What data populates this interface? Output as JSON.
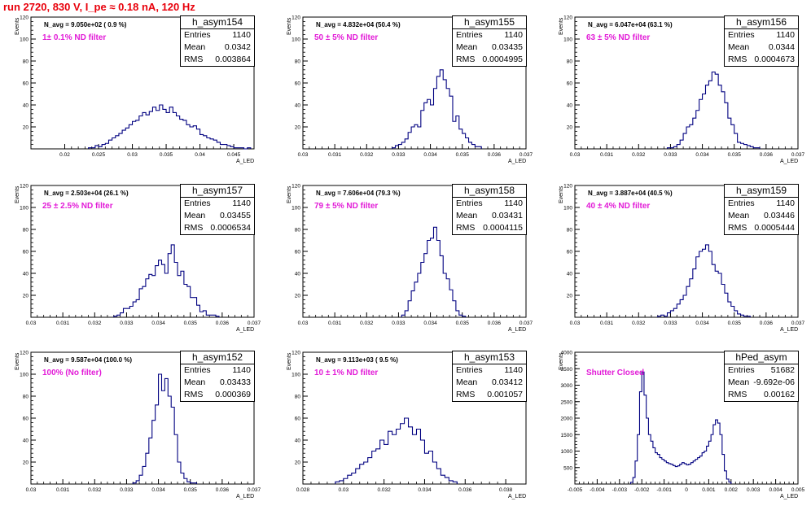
{
  "run_title": "run 2720,   830 V, I_pe ≈ 0.18 nA, 120 Hz",
  "panels": [
    {
      "name": "h_asym154",
      "entries": "1140",
      "mean": "0.0342",
      "rms": "0.003864",
      "navg": "N_avg = 9.050e+02 ( 0.9 %)",
      "filter": "1± 0.1% ND filter",
      "ylabel": "Events",
      "xlabel": "A_LED"
    },
    {
      "name": "h_asym155",
      "entries": "1140",
      "mean": "0.03435",
      "rms": "0.0004995",
      "navg": "N_avg = 4.832e+04 (50.4 %)",
      "filter": "50 ± 5% ND filter",
      "ylabel": "Events",
      "xlabel": "A_LED"
    },
    {
      "name": "h_asym156",
      "entries": "1140",
      "mean": "0.0344",
      "rms": "0.0004673",
      "navg": "N_avg = 6.047e+04 (63.1 %)",
      "filter": "63 ± 5% ND filter",
      "ylabel": "Events",
      "xlabel": "A_LED"
    },
    {
      "name": "h_asym157",
      "entries": "1140",
      "mean": "0.03455",
      "rms": "0.0006534",
      "navg": "N_avg = 2.503e+04 (26.1 %)",
      "filter": "25 ± 2.5% ND filter",
      "ylabel": "Events",
      "xlabel": "A_LED"
    },
    {
      "name": "h_asym158",
      "entries": "1140",
      "mean": "0.03431",
      "rms": "0.0004115",
      "navg": "N_avg = 7.606e+04 (79.3 %)",
      "filter": "79 ± 5% ND filter",
      "ylabel": "Events",
      "xlabel": "A_LED"
    },
    {
      "name": "h_asym159",
      "entries": "1140",
      "mean": "0.03446",
      "rms": "0.0005444",
      "navg": "N_avg = 3.887e+04 (40.5 %)",
      "filter": "40 ± 4% ND filter",
      "ylabel": "Events",
      "xlabel": "A_LED"
    },
    {
      "name": "h_asym152",
      "entries": "1140",
      "mean": "0.03433",
      "rms": "0.000369",
      "navg": "N_avg = 9.587e+04 (100.0 %)",
      "filter": "100% (No filter)",
      "ylabel": "Events",
      "xlabel": "A_LED"
    },
    {
      "name": "h_asym153",
      "entries": "1140",
      "mean": "0.03412",
      "rms": "0.001057",
      "navg": "N_avg = 9.113e+03 ( 9.5 %)",
      "filter": "10 ± 1% ND filter",
      "ylabel": "Events",
      "xlabel": "A_LED"
    },
    {
      "name": "hPed_asym",
      "entries": "51682",
      "mean": "-9.692e-06",
      "rms": "0.00162",
      "navg": "",
      "filter": "Shutter Closed",
      "ylabel": "Events",
      "xlabel": "A_LED"
    }
  ],
  "chart_data": [
    {
      "type": "histogram",
      "title": "h_asym154",
      "xlim": [
        0.015,
        0.048
      ],
      "ylim": [
        0,
        120
      ],
      "xticks": [
        "0.02",
        "0.025",
        "0.03",
        "0.035",
        "0.04",
        "0.045"
      ],
      "yticks": [
        "20",
        "40",
        "60",
        "80",
        "100",
        "120"
      ],
      "bin_width": 0.0005,
      "x_start": 0.0235,
      "values": [
        1,
        1,
        3,
        2,
        4,
        5,
        8,
        10,
        12,
        14,
        17,
        19,
        22,
        25,
        26,
        30,
        33,
        31,
        34,
        38,
        35,
        40,
        36,
        33,
        38,
        33,
        30,
        27,
        26,
        22,
        20,
        21,
        18,
        13,
        12,
        10,
        9,
        8,
        6,
        4,
        4,
        3,
        2,
        1,
        1,
        1,
        0,
        1
      ]
    },
    {
      "type": "histogram",
      "title": "h_asym155",
      "xlim": [
        0.03,
        0.037
      ],
      "ylim": [
        0,
        120
      ],
      "xticks": [
        "0.03",
        "0.031",
        "0.032",
        "0.033",
        "0.034",
        "0.035",
        "0.036",
        "0.037"
      ],
      "yticks": [
        "20",
        "40",
        "60",
        "80",
        "100",
        "120"
      ],
      "bin_width": 0.0001,
      "x_start": 0.0328,
      "values": [
        1,
        3,
        4,
        6,
        9,
        15,
        20,
        22,
        20,
        35,
        42,
        45,
        40,
        55,
        66,
        72,
        63,
        55,
        48,
        25,
        30,
        18,
        14,
        10,
        6,
        4,
        2,
        2
      ]
    },
    {
      "type": "histogram",
      "title": "h_asym156",
      "xlim": [
        0.03,
        0.037
      ],
      "ylim": [
        0,
        120
      ],
      "xticks": [
        "0.03",
        "0.031",
        "0.032",
        "0.033",
        "0.034",
        "0.035",
        "0.036",
        "0.037"
      ],
      "yticks": [
        "20",
        "40",
        "60",
        "80",
        "100",
        "120"
      ],
      "bin_width": 0.0001,
      "x_start": 0.0329,
      "values": [
        1,
        1,
        2,
        4,
        8,
        14,
        20,
        22,
        28,
        35,
        45,
        50,
        58,
        62,
        70,
        68,
        58,
        52,
        42,
        28,
        22,
        14,
        6,
        5,
        4,
        3,
        2,
        1,
        1
      ]
    },
    {
      "type": "histogram",
      "title": "h_asym157",
      "xlim": [
        0.03,
        0.037
      ],
      "ylim": [
        0,
        120
      ],
      "xticks": [
        "0.03",
        "0.031",
        "0.032",
        "0.033",
        "0.034",
        "0.035",
        "0.036",
        "0.037"
      ],
      "yticks": [
        "20",
        "40",
        "60",
        "80",
        "100",
        "120"
      ],
      "bin_width": 0.0001,
      "x_start": 0.0326,
      "values": [
        1,
        2,
        4,
        8,
        8,
        10,
        14,
        16,
        26,
        28,
        35,
        39,
        38,
        47,
        52,
        48,
        40,
        58,
        66,
        50,
        38,
        42,
        30,
        28,
        18,
        18,
        11,
        5,
        6,
        2,
        2,
        2,
        1
      ]
    },
    {
      "type": "histogram",
      "title": "h_asym158",
      "xlim": [
        0.03,
        0.037
      ],
      "ylim": [
        0,
        120
      ],
      "xticks": [
        "0.03",
        "0.031",
        "0.032",
        "0.033",
        "0.034",
        "0.035",
        "0.036",
        "0.037"
      ],
      "yticks": [
        "20",
        "40",
        "60",
        "80",
        "100",
        "120"
      ],
      "bin_width": 0.0001,
      "x_start": 0.0331,
      "values": [
        2,
        6,
        15,
        24,
        32,
        40,
        50,
        58,
        70,
        72,
        82,
        70,
        56,
        40,
        35,
        25,
        15,
        6,
        2,
        1
      ]
    },
    {
      "type": "histogram",
      "title": "h_asym159",
      "xlim": [
        0.03,
        0.037
      ],
      "ylim": [
        0,
        120
      ],
      "xticks": [
        "0.03",
        "0.031",
        "0.032",
        "0.033",
        "0.034",
        "0.035",
        "0.036",
        "0.037"
      ],
      "yticks": [
        "20",
        "40",
        "60",
        "80",
        "100",
        "120"
      ],
      "bin_width": 0.0001,
      "x_start": 0.0326,
      "values": [
        1,
        2,
        1,
        4,
        6,
        8,
        12,
        16,
        20,
        28,
        35,
        44,
        55,
        60,
        62,
        66,
        60,
        48,
        42,
        40,
        30,
        22,
        14,
        10,
        6,
        3,
        2,
        1,
        1
      ]
    },
    {
      "type": "histogram",
      "title": "h_asym152",
      "xlim": [
        0.03,
        0.037
      ],
      "ylim": [
        0,
        120
      ],
      "xticks": [
        "0.03",
        "0.031",
        "0.032",
        "0.033",
        "0.034",
        "0.035",
        "0.036",
        "0.037"
      ],
      "yticks": [
        "20",
        "40",
        "60",
        "80",
        "100",
        "120"
      ],
      "bin_width": 0.0001,
      "x_start": 0.0332,
      "values": [
        1,
        3,
        8,
        16,
        28,
        42,
        58,
        72,
        100,
        85,
        96,
        80,
        70,
        45,
        20,
        10,
        5,
        2,
        1,
        1
      ]
    },
    {
      "type": "histogram",
      "title": "h_asym153",
      "xlim": [
        0.028,
        0.039
      ],
      "ylim": [
        0,
        120
      ],
      "xticks": [
        "0.028",
        "0.03",
        "0.032",
        "0.034",
        "0.036",
        "0.038"
      ],
      "yticks": [
        "20",
        "40",
        "60",
        "80",
        "100",
        "120"
      ],
      "bin_width": 0.0002,
      "x_start": 0.0296,
      "values": [
        2,
        3,
        5,
        8,
        10,
        14,
        18,
        20,
        24,
        30,
        32,
        40,
        36,
        48,
        45,
        50,
        55,
        60,
        52,
        45,
        50,
        40,
        28,
        30,
        20,
        14,
        8,
        6,
        3,
        2
      ]
    },
    {
      "type": "histogram",
      "title": "hPed_asym",
      "xlim": [
        -0.005,
        0.005
      ],
      "ylim": [
        0,
        4000
      ],
      "xticks": [
        "-0.005",
        "-0.004",
        "-0.003",
        "-0.002",
        "-0.001",
        "0",
        "0.001",
        "0.002",
        "0.003",
        "0.004",
        "0.005"
      ],
      "yticks": [
        "500",
        "1000",
        "1500",
        "2000",
        "2500",
        "3000",
        "3500",
        "4000"
      ],
      "bin_width": 0.0001,
      "x_start": -0.0025,
      "values": [
        50,
        200,
        700,
        1500,
        2800,
        3400,
        2700,
        2000,
        1500,
        1300,
        1100,
        950,
        900,
        800,
        750,
        700,
        650,
        620,
        600,
        560,
        530,
        550,
        600,
        650,
        620,
        580,
        600,
        650,
        700,
        750,
        800,
        850,
        950,
        1000,
        1150,
        1300,
        1500,
        1800,
        1950,
        1850,
        1500,
        900,
        400,
        150,
        60
      ]
    }
  ]
}
